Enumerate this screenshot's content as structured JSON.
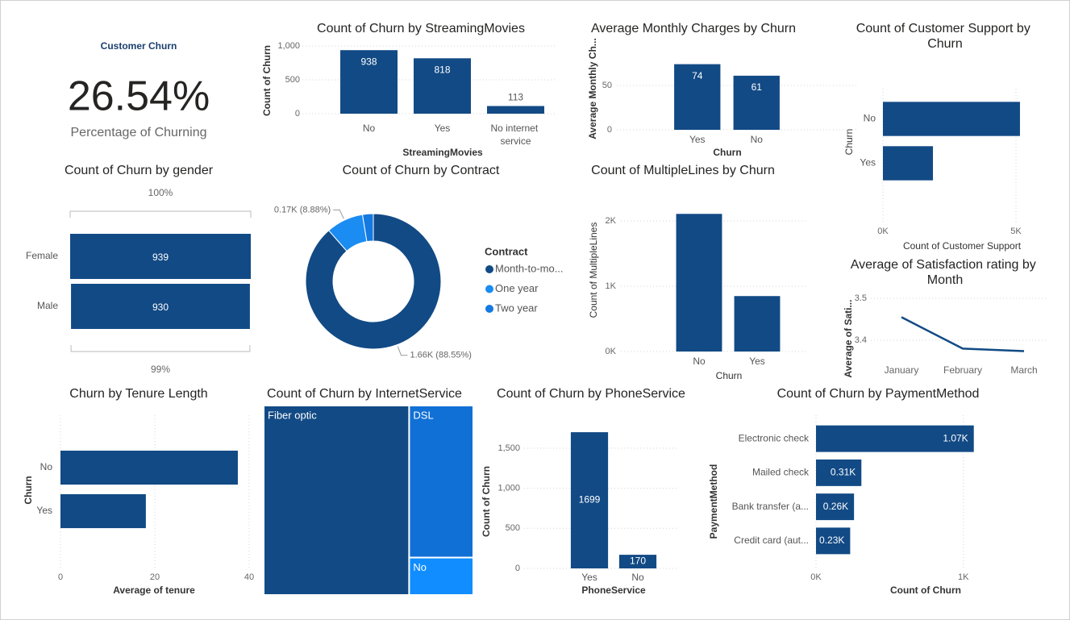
{
  "chart_data": [
    {
      "type": "card",
      "title": "Customer Churn",
      "values": [
        26.54
      ],
      "value_labels": [
        "26.54%"
      ],
      "subtitle": "Percentage of Churning"
    },
    {
      "type": "bar",
      "title": "Count of Churn by StreamingMovies",
      "categories": [
        "No",
        "Yes",
        "No internet service"
      ],
      "values": [
        938,
        818,
        113
      ],
      "color": "#124a85",
      "xlabel": "StreamingMovies",
      "ylabel": "Count of Churn",
      "ylim": [
        0,
        1000
      ],
      "yticks": [
        0,
        500,
        {
          "value": 1000,
          "label": "1,000"
        }
      ],
      "grid": true
    },
    {
      "type": "bar",
      "title": "Average Monthly Charges by Churn",
      "categories": [
        "Yes",
        "No"
      ],
      "values": [
        74,
        61
      ],
      "color": "#124a85",
      "xlabel": "Churn",
      "ylabel": "Average Monthly Ch...",
      "ylim": [
        0,
        100
      ],
      "yticks": [
        0,
        50
      ],
      "grid": true
    },
    {
      "type": "hbar",
      "title": "Count of Customer Support by Churn",
      "categories": [
        "No",
        "Yes"
      ],
      "values": [
        5150,
        1880
      ],
      "color": "#124a85",
      "xlabel": "Count of Customer Support",
      "ylabel": "Churn",
      "xlim": [
        0,
        5500
      ],
      "xticks": [
        {
          "value": 0,
          "label": "0K"
        },
        {
          "value": 5000,
          "label": "5K"
        }
      ],
      "grid": true
    },
    {
      "type": "funnel",
      "title": "Count of Churn by gender",
      "categories": [
        "Female",
        "Male"
      ],
      "values": [
        939,
        930
      ],
      "color": "#124a85",
      "rates": [
        100,
        99
      ],
      "rate_labels": [
        "100%",
        "99%"
      ]
    },
    {
      "type": "donut",
      "title": "Count of Churn by Contract",
      "categories": [
        "Month-to-mo...",
        "One year",
        "Two year"
      ],
      "values": [
        1655,
        166,
        48
      ],
      "value_labels": [
        "1.66K (88.55%)",
        "0.17K (8.88%)",
        null
      ],
      "colors": [
        "#124a85",
        "#1a8cf2",
        "#1479e0"
      ],
      "legend_title": "Contract"
    },
    {
      "type": "bar",
      "title": "Count of MultipleLines by Churn",
      "categories": [
        "No",
        "Yes"
      ],
      "values": [
        2110,
        850
      ],
      "color": "#124a85",
      "xlabel": "Churn",
      "ylabel": "Count of MultipleLines",
      "ylim": [
        0,
        2200
      ],
      "yticks": [
        {
          "value": 0,
          "label": "0K"
        },
        {
          "value": 1000,
          "label": "1K"
        },
        {
          "value": 2000,
          "label": "2K"
        }
      ],
      "grid": true
    },
    {
      "type": "line",
      "title": "Average of Satisfaction rating by Month",
      "categories": [
        "January",
        "February",
        "March"
      ],
      "values": [
        3.455,
        3.38,
        3.374
      ],
      "color": "#124a85",
      "ylabel": "Average of Sati...",
      "ylim": [
        3.35,
        3.52
      ],
      "yticks": [
        3.4,
        3.5
      ],
      "grid": true
    },
    {
      "type": "hbar",
      "title": "Churn by Tenure Length",
      "categories": [
        "No",
        "Yes"
      ],
      "values": [
        37.6,
        18.1
      ],
      "color": "#124a85",
      "xlabel": "Average of tenure",
      "ylabel": "Churn",
      "xlim": [
        0,
        40
      ],
      "xticks": [
        0,
        20,
        40
      ],
      "grid": true
    },
    {
      "type": "treemap",
      "title": "Count of Churn by InternetService",
      "categories": [
        "Fiber optic",
        "DSL",
        "No"
      ],
      "values": [
        1297,
        459,
        113
      ],
      "colors": [
        "#124a85",
        "#1170d6",
        "#118dff"
      ]
    },
    {
      "type": "bar",
      "title": "Count of Churn by PhoneService",
      "categories": [
        "Yes",
        "No"
      ],
      "values": [
        1699,
        170
      ],
      "color": "#124a85",
      "xlabel": "PhoneService",
      "ylabel": "Count of Churn",
      "ylim": [
        0,
        1750
      ],
      "yticks": [
        0,
        500,
        {
          "value": 1000,
          "label": "1,000"
        },
        {
          "value": 1500,
          "label": "1,500"
        }
      ],
      "grid": true
    },
    {
      "type": "hbar",
      "title": "Count of Churn by PaymentMethod",
      "categories": [
        "Electronic check",
        "Mailed check",
        "Bank transfer (a...",
        "Credit card (aut..."
      ],
      "values": [
        1071,
        308,
        258,
        232
      ],
      "value_labels": [
        "1.07K",
        "0.31K",
        "0.26K",
        "0.23K"
      ],
      "color": "#124a85",
      "xlabel": "Count of Churn",
      "ylabel": "PaymentMethod",
      "xlim": [
        0,
        1100
      ],
      "xticks": [
        {
          "value": 0,
          "label": "0K"
        },
        {
          "value": 1000,
          "label": "1K"
        }
      ],
      "grid": true
    }
  ]
}
